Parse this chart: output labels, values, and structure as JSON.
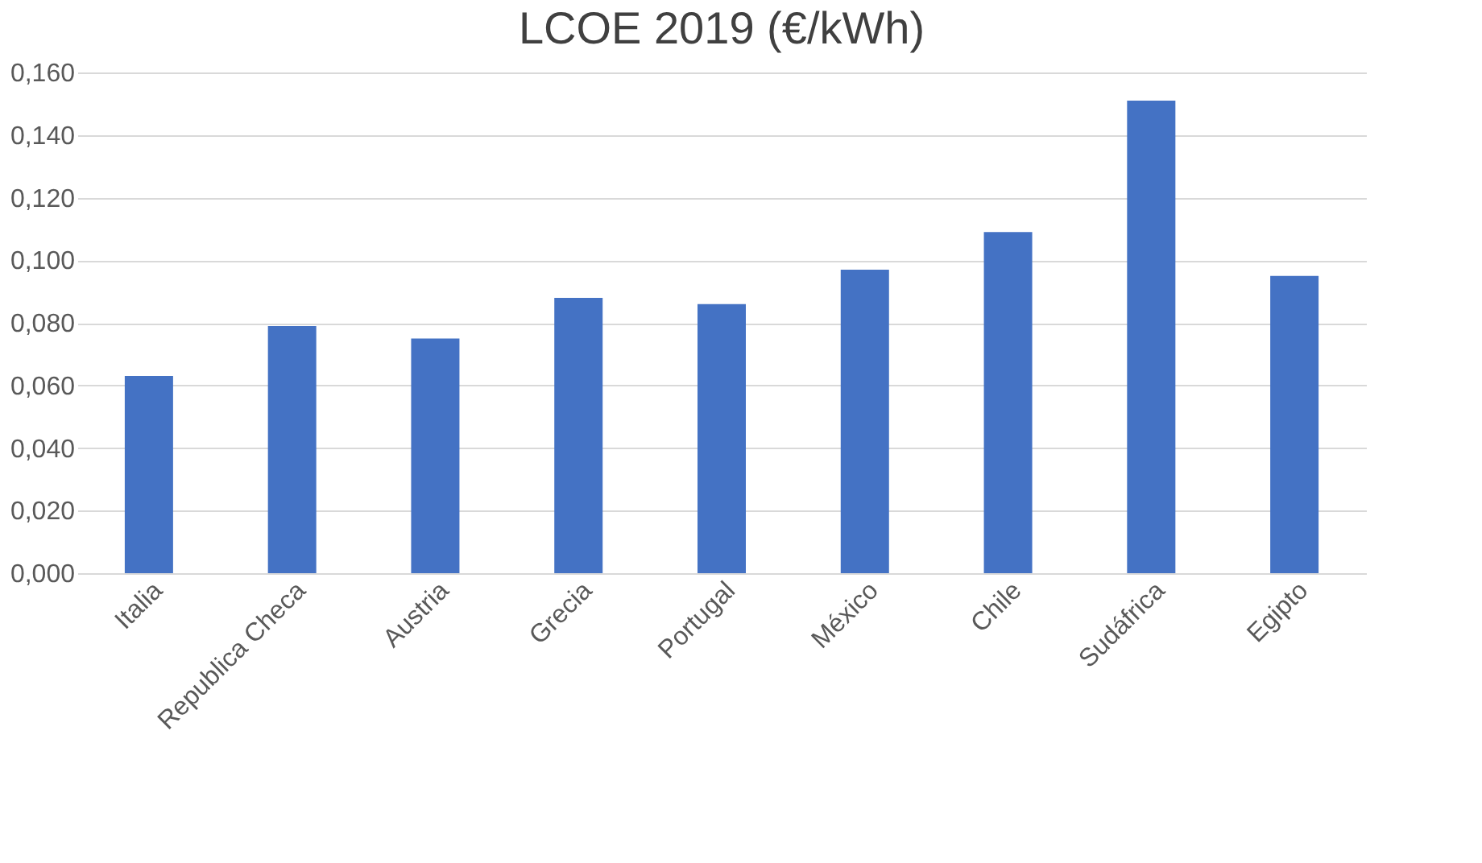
{
  "chart_data": {
    "type": "bar",
    "title": "LCOE 2019 (€/kWh)",
    "categories": [
      "Italia",
      "Republica Checa",
      "Austria",
      "Grecia",
      "Portugal",
      "México",
      "Chile",
      "Sudáfrica",
      "Egipto"
    ],
    "values": [
      0.063,
      0.079,
      0.075,
      0.088,
      0.086,
      0.097,
      0.109,
      0.151,
      0.095
    ],
    "color": "#4472c4",
    "ylim": [
      0,
      0.16
    ],
    "yticks": [
      {
        "value": 0,
        "label": "0,000"
      },
      {
        "value": 0.02,
        "label": "0,020"
      },
      {
        "value": 0.04,
        "label": "0,040"
      },
      {
        "value": 0.06,
        "label": "0,060"
      },
      {
        "value": 0.08,
        "label": "0,080"
      },
      {
        "value": 0.1,
        "label": "0,100"
      },
      {
        "value": 0.12,
        "label": "0,120"
      },
      {
        "value": 0.14,
        "label": "0,140"
      },
      {
        "value": 0.16,
        "label": "0,160"
      }
    ],
    "grid": "y"
  }
}
